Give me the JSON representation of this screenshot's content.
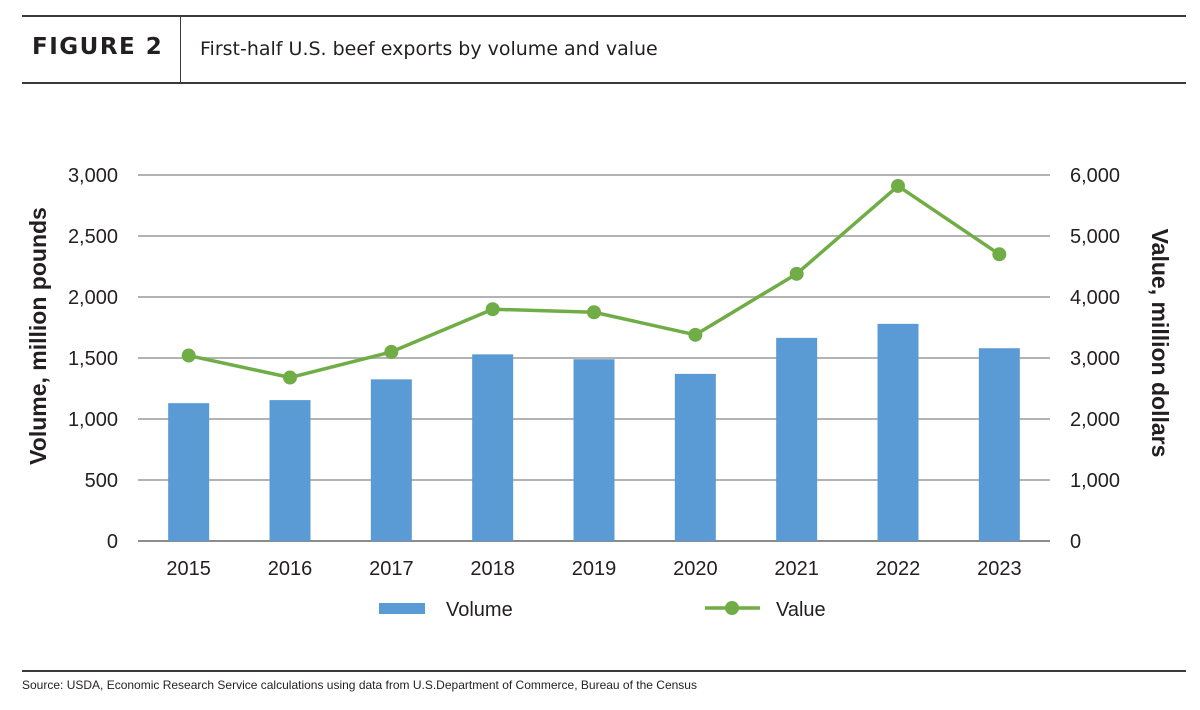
{
  "header": {
    "figure_label": "FIGURE 2",
    "title": "First-half U.S. beef exports by volume and value"
  },
  "source": "Source: USDA, Economic Research Service calculations using data from U.S.Department of Commerce, Bureau of the Census",
  "chart_data": {
    "type": "bar",
    "categories": [
      "2015",
      "2016",
      "2017",
      "2018",
      "2019",
      "2020",
      "2021",
      "2022",
      "2023"
    ],
    "series": [
      {
        "name": "Volume",
        "type": "bar",
        "axis": "left",
        "color": "#5b9bd5",
        "values": [
          1130,
          1155,
          1325,
          1530,
          1490,
          1370,
          1665,
          1780,
          1580
        ]
      },
      {
        "name": "Value",
        "type": "line",
        "axis": "right",
        "color": "#70ad47",
        "values": [
          3040,
          2680,
          3100,
          3800,
          3750,
          3380,
          4380,
          5820,
          4700
        ]
      }
    ],
    "y_left": {
      "label": "Volume, million pounds",
      "ylim": [
        0,
        3000
      ],
      "ticks": [
        "0",
        "500",
        "1,000",
        "1,500",
        "2,000",
        "2,500",
        "3,000"
      ]
    },
    "y_right": {
      "label": "Value, million dollars",
      "ylim": [
        0,
        6000
      ],
      "ticks": [
        "0",
        "1,000",
        "2,000",
        "3,000",
        "4,000",
        "5,000",
        "6,000"
      ]
    },
    "grid": true,
    "legend_position": "bottom"
  }
}
